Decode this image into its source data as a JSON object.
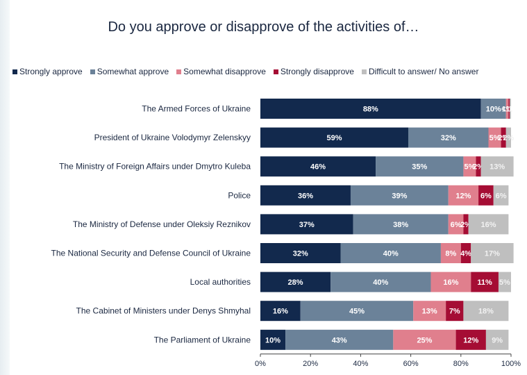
{
  "chart_data": {
    "type": "bar",
    "orientation": "horizontal",
    "stacked": true,
    "title": "Do you approve or disapprove of the activities of…",
    "categories": [
      "The Armed Forces of Ukraine",
      "President of Ukraine Volodymyr Zelenskyy",
      "The Ministry of Foreign Affairs under Dmytro Kuleba",
      "Police",
      "The Ministry of Defense under Oleksiy Reznikov",
      "The National Security and Defense Council of Ukraine",
      "Local authorities",
      "The Cabinet of Ministers under Denys Shmyhal",
      "The Parliament of Ukraine"
    ],
    "series": [
      {
        "name": "Strongly approve",
        "color": "#12294d",
        "values": [
          88,
          59,
          46,
          36,
          37,
          32,
          28,
          16,
          10
        ],
        "labels": [
          "88%",
          "59%",
          "46%",
          "36%",
          "37%",
          "32%",
          "28%",
          "16%",
          "10%"
        ]
      },
      {
        "name": "Somewhat approve",
        "color": "#6b8299",
        "values": [
          10,
          32,
          35,
          39,
          38,
          40,
          40,
          45,
          43
        ],
        "labels": [
          "10%",
          "32%",
          "35%",
          "39%",
          "38%",
          "40%",
          "40%",
          "45%",
          "43%"
        ]
      },
      {
        "name": "Somewhat disapprove",
        "color": "#e07f8d",
        "values": [
          1,
          5,
          5,
          12,
          6,
          8,
          16,
          13,
          25
        ],
        "labels": [
          "1%",
          "5%",
          "5%",
          "12%",
          "6%",
          "8%",
          "16%",
          "13%",
          "25%"
        ]
      },
      {
        "name": "Strongly disapprove",
        "color": "#a50d34",
        "values": [
          0.5,
          2,
          2,
          6,
          2,
          4,
          11,
          7,
          12
        ],
        "labels": [
          "<1%",
          "2%",
          "2%",
          "6%",
          "2%",
          "4%",
          "11%",
          "7%",
          "12%"
        ]
      },
      {
        "name": "Difficult to answer/ No answer",
        "color": "#bfbfbf",
        "values": [
          0.5,
          2,
          13,
          6,
          16,
          17,
          5,
          18,
          9
        ],
        "labels": [
          "1",
          "2%",
          "13%",
          "6%",
          "16%",
          "17%",
          "5%",
          "18%",
          "9%"
        ]
      }
    ],
    "x_ticks": [
      "0%",
      "20%",
      "40%",
      "60%",
      "80%",
      "100%"
    ],
    "xlim": [
      0,
      100
    ],
    "xlabel": "",
    "ylabel": "",
    "legend_position": "top",
    "grid": false
  }
}
